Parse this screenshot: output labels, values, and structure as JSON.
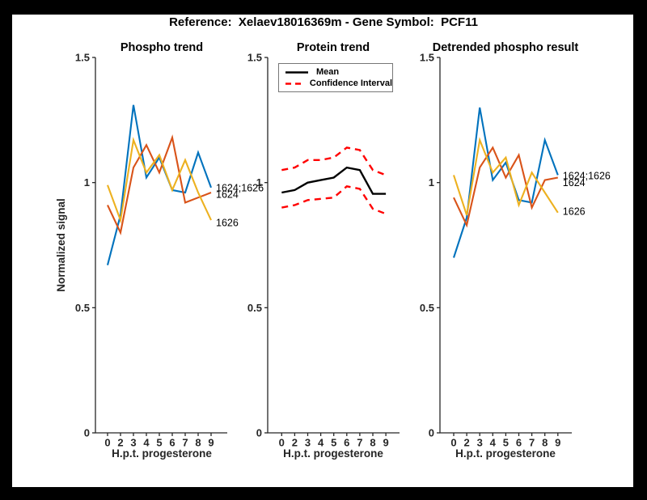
{
  "figure": {
    "title": "Reference:  Xelaev18016369m - Gene Symbol:  PCF11",
    "ylabel": "Normalized signal",
    "xlabel": "H.p.t. progesterone",
    "y_tick_labels": [
      "0",
      "0.5",
      "1",
      "1.5"
    ],
    "y_tick_values": [
      0,
      0.5,
      1,
      1.5
    ],
    "background_color": "#ffffff",
    "frame_color": "#000000",
    "axis_color": "#262626"
  },
  "chart_data": [
    {
      "type": "line",
      "title": "Phospho trend",
      "xlabel": "H.p.t. progesterone",
      "ylabel": "Normalized signal",
      "x_tick_labels": [
        "0",
        "2",
        "3",
        "4",
        "5",
        "6",
        "7",
        "8",
        "9"
      ],
      "ylim": [
        0,
        1.5
      ],
      "grid": false,
      "series": [
        {
          "name": "1624;1626",
          "color": "#0072BD",
          "style": "solid",
          "values": [
            0.67,
            0.87,
            1.31,
            1.02,
            1.1,
            0.97,
            0.96,
            1.12,
            0.98
          ]
        },
        {
          "name": "1624",
          "color": "#D95319",
          "style": "solid",
          "values": [
            0.91,
            0.8,
            1.06,
            1.15,
            1.04,
            1.18,
            0.92,
            0.94,
            0.96
          ]
        },
        {
          "name": "1626",
          "color": "#EDB120",
          "style": "solid",
          "values": [
            0.99,
            0.85,
            1.17,
            1.04,
            1.11,
            0.97,
            1.09,
            0.96,
            0.85
          ]
        }
      ],
      "end_labels": [
        {
          "text": "1624;1626",
          "value": 0.98
        },
        {
          "text": "1624",
          "value": 0.953
        },
        {
          "text": "1626",
          "value": 0.84
        }
      ]
    },
    {
      "type": "line",
      "title": "Protein trend",
      "xlabel": "H.p.t. progesterone",
      "ylabel": "Normalized signal",
      "x_tick_labels": [
        "0",
        "2",
        "3",
        "4",
        "5",
        "6",
        "7",
        "8",
        "9"
      ],
      "ylim": [
        0,
        1.5
      ],
      "grid": false,
      "legend": {
        "position": "northwest",
        "entries": [
          "Mean",
          "Confidence Interval"
        ]
      },
      "series": [
        {
          "name": "Mean",
          "color": "#000000",
          "style": "solid",
          "values": [
            0.96,
            0.97,
            1.0,
            1.01,
            1.02,
            1.06,
            1.05,
            0.955,
            0.955
          ]
        },
        {
          "name": "Confidence Interval upper",
          "color": "#FF0000",
          "style": "dashed",
          "values": [
            1.05,
            1.06,
            1.09,
            1.09,
            1.1,
            1.14,
            1.13,
            1.05,
            1.03
          ]
        },
        {
          "name": "Confidence Interval lower",
          "color": "#FF0000",
          "style": "dashed",
          "values": [
            0.9,
            0.91,
            0.93,
            0.935,
            0.94,
            0.985,
            0.975,
            0.895,
            0.875
          ]
        }
      ],
      "end_labels": []
    },
    {
      "type": "line",
      "title": "Detrended phospho result",
      "xlabel": "H.p.t. progesterone",
      "ylabel": "Normalized signal",
      "x_tick_labels": [
        "0",
        "2",
        "3",
        "4",
        "5",
        "6",
        "7",
        "8",
        "9"
      ],
      "ylim": [
        0,
        1.5
      ],
      "grid": false,
      "series": [
        {
          "name": "1624;1626",
          "color": "#0072BD",
          "style": "solid",
          "values": [
            0.7,
            0.86,
            1.3,
            1.01,
            1.08,
            0.93,
            0.92,
            1.17,
            1.03
          ]
        },
        {
          "name": "1624",
          "color": "#D95319",
          "style": "solid",
          "values": [
            0.94,
            0.83,
            1.06,
            1.14,
            1.02,
            1.11,
            0.9,
            1.01,
            1.02
          ]
        },
        {
          "name": "1626",
          "color": "#EDB120",
          "style": "solid",
          "values": [
            1.03,
            0.87,
            1.17,
            1.04,
            1.1,
            0.91,
            1.04,
            0.96,
            0.88
          ]
        }
      ],
      "end_labels": [
        {
          "text": "1624;1626",
          "value": 1.028
        },
        {
          "text": "1624",
          "value": 1.0
        },
        {
          "text": "1626",
          "value": 0.885
        }
      ]
    }
  ]
}
